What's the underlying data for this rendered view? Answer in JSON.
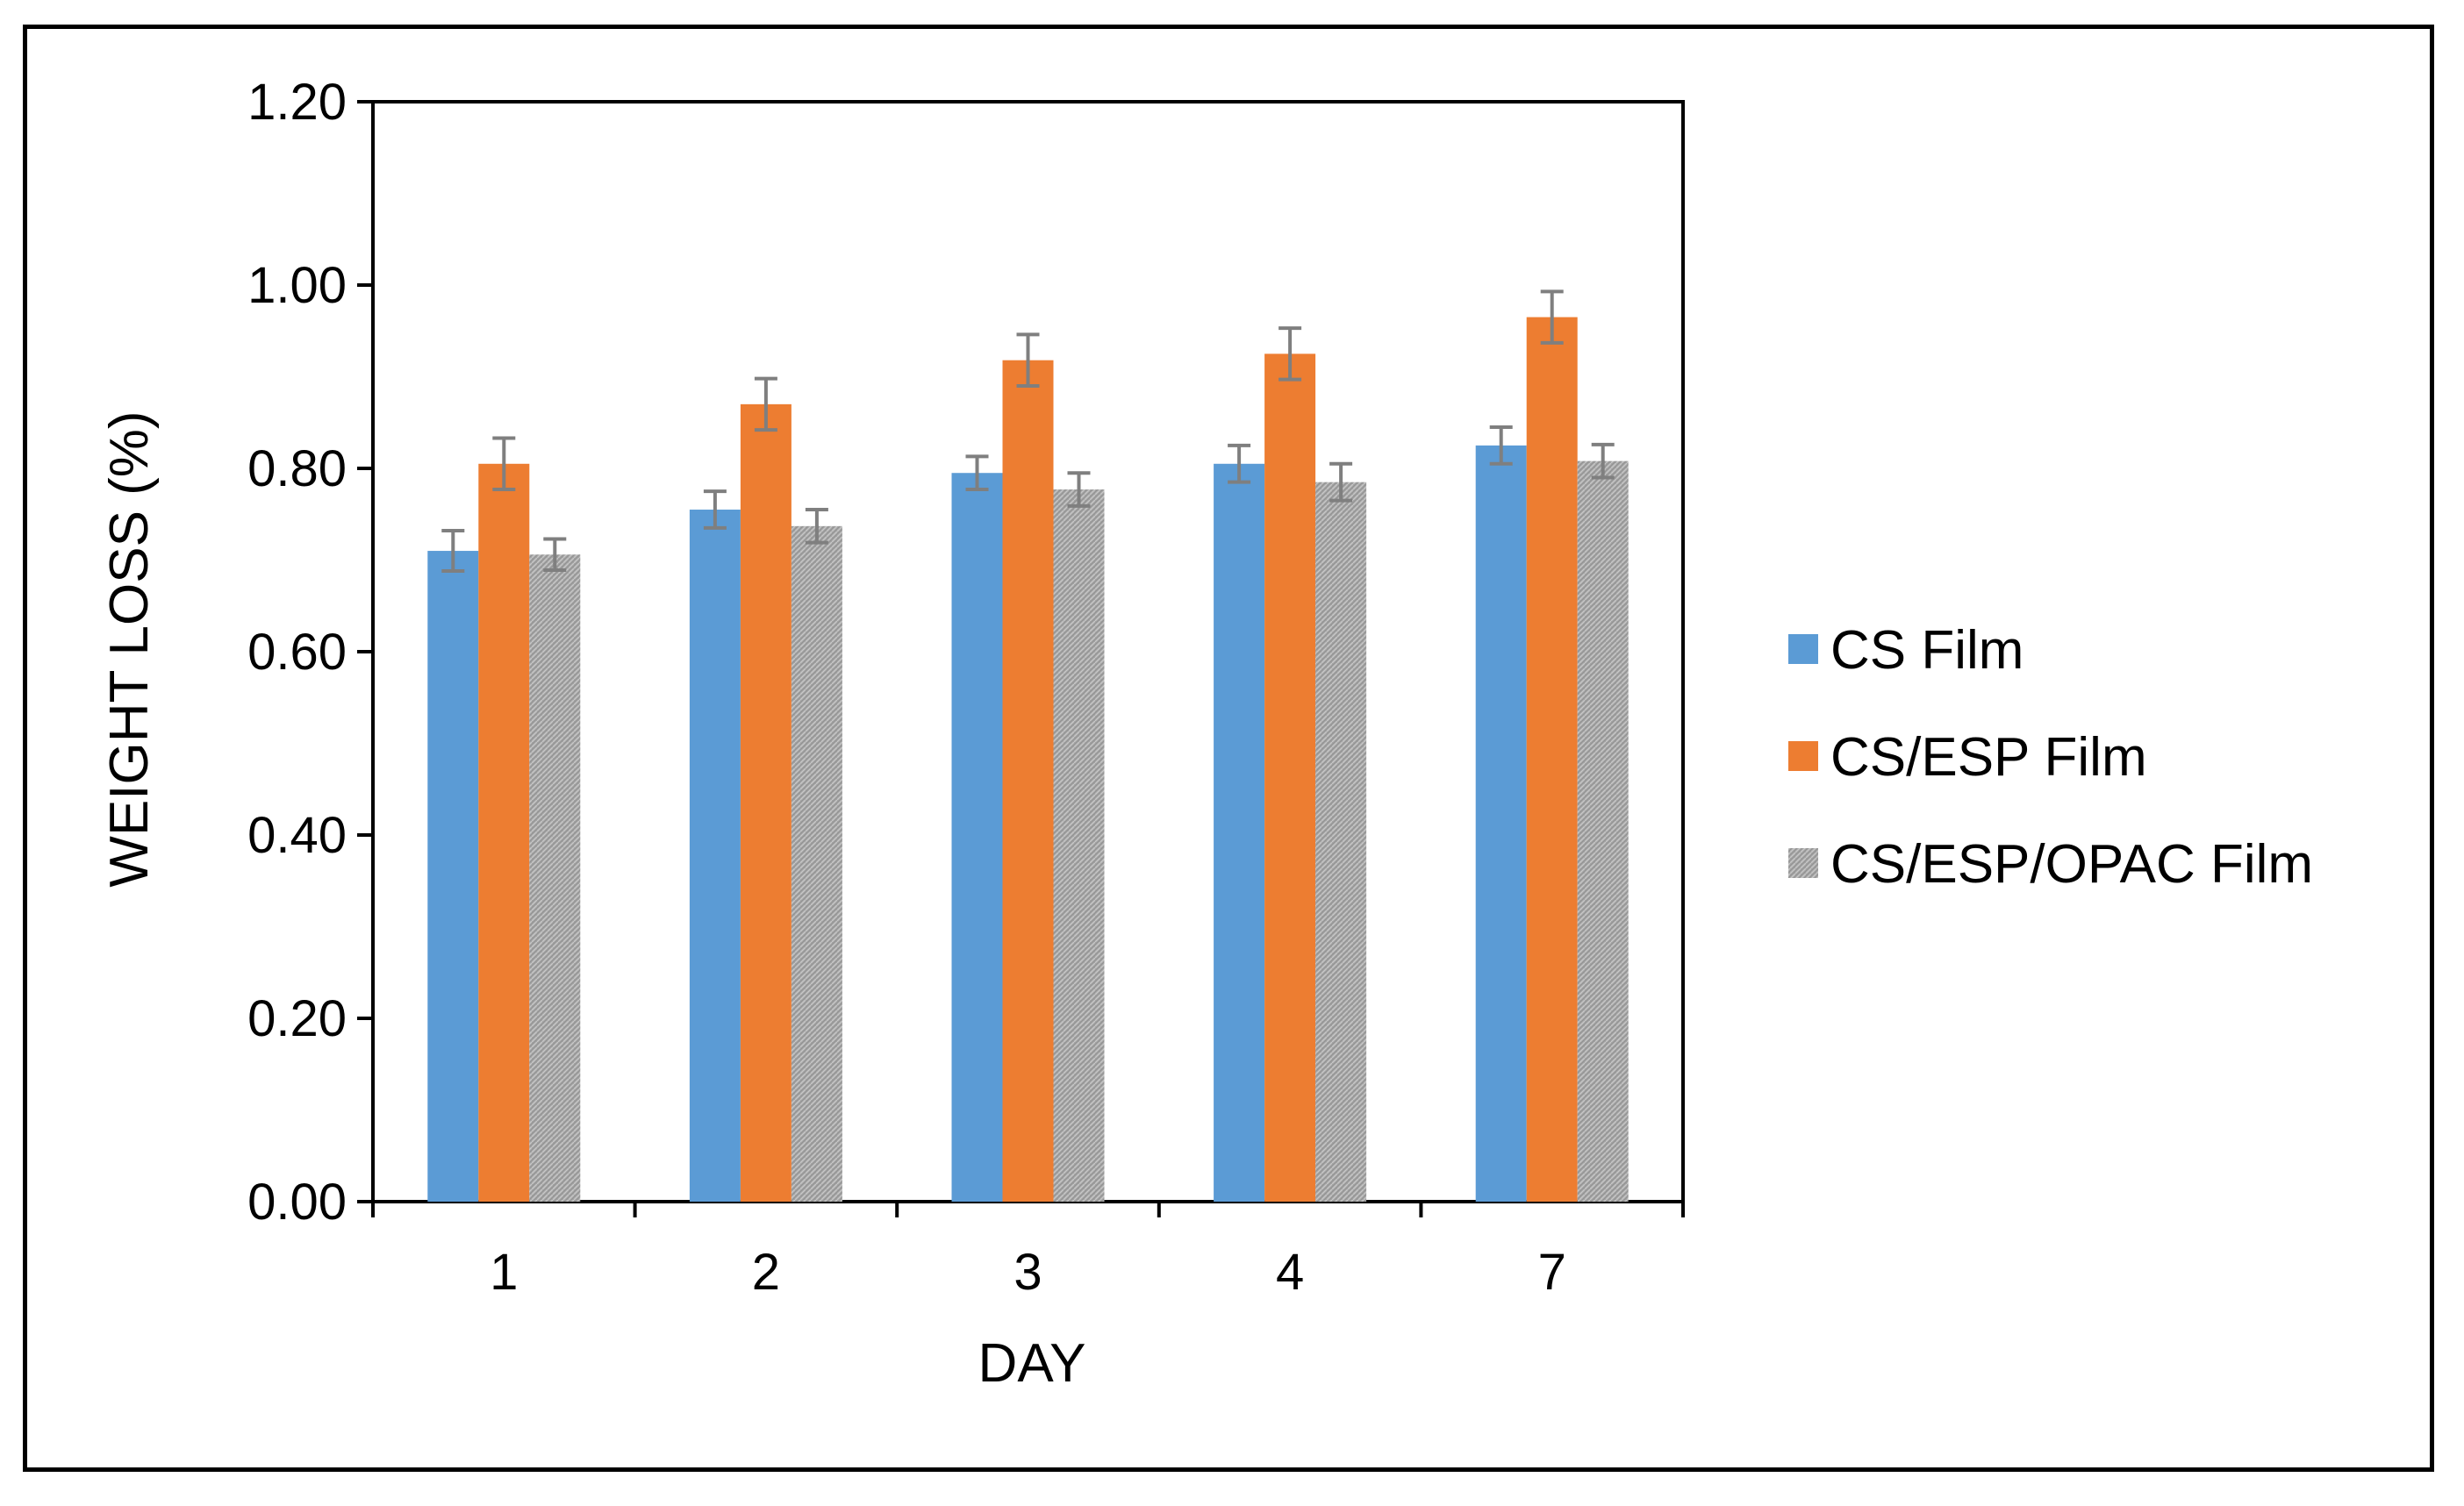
{
  "chart_data": {
    "type": "bar",
    "title": "",
    "xlabel": "DAY",
    "ylabel": "WEIGHT LOSS (%)",
    "categories": [
      "1",
      "2",
      "3",
      "4",
      "7"
    ],
    "ylim": [
      0,
      1.2
    ],
    "yticks": [
      "0.00",
      "0.20",
      "0.40",
      "0.60",
      "0.80",
      "1.00",
      "1.20"
    ],
    "grid": false,
    "legend_position": "right",
    "series": [
      {
        "name": "CS Film",
        "color": "#5b9bd5",
        "values": [
          0.71,
          0.755,
          0.795,
          0.805,
          0.825
        ],
        "errors": [
          0.022,
          0.02,
          0.018,
          0.02,
          0.02
        ]
      },
      {
        "name": "CS/ESP Film",
        "color": "#ed7d31",
        "values": [
          0.805,
          0.87,
          0.918,
          0.925,
          0.965
        ],
        "errors": [
          0.028,
          0.028,
          0.028,
          0.028,
          0.028
        ]
      },
      {
        "name": "CS/ESP/OPAC Film",
        "color": "#a5a5a5",
        "values": [
          0.706,
          0.737,
          0.777,
          0.785,
          0.808
        ],
        "errors": [
          0.017,
          0.018,
          0.018,
          0.02,
          0.018
        ]
      }
    ]
  }
}
